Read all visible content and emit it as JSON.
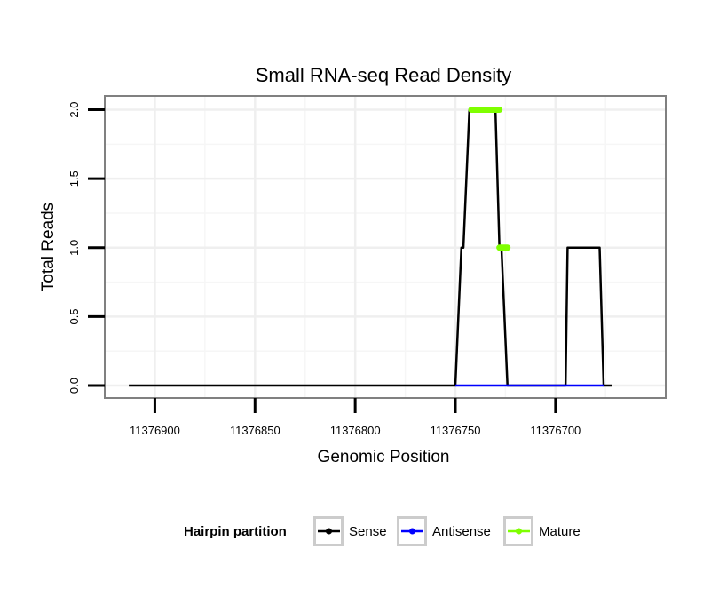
{
  "chart_data": {
    "type": "line",
    "title": "Small RNA-seq Read Density",
    "xlabel": "Genomic Position",
    "ylabel": "Total Reads",
    "xlim": [
      11376925,
      11376645
    ],
    "ylim": [
      -0.09,
      2.1
    ],
    "x_reversed": true,
    "grid": true,
    "x_ticks": [
      11376900,
      11376850,
      11376800,
      11376750,
      11376700
    ],
    "x_tick_labels": [
      "11376900",
      "11376850",
      "11376800",
      "11376750",
      "11376700"
    ],
    "y_ticks": [
      0,
      0.5,
      1,
      1.5,
      2
    ],
    "y_tick_labels": [
      "0.0",
      "0.5",
      "1.0",
      "1.5",
      "2.0"
    ],
    "series": [
      {
        "name": "Sense",
        "color": "#000000",
        "x": [
          11376913,
          11376750,
          11376747,
          11376747,
          11376746,
          11376743,
          11376730,
          11376728,
          11376727,
          11376724,
          11376695,
          11376694,
          11376678,
          11376676,
          11376672
        ],
        "y": [
          0,
          0,
          1,
          1,
          1,
          2,
          2,
          1,
          1,
          0,
          0,
          1,
          1,
          0,
          0
        ]
      },
      {
        "name": "Antisense",
        "color": "#0000ff",
        "x": [
          11376750,
          11376724,
          11376694,
          11376676
        ],
        "y": [
          0,
          0,
          0,
          0
        ]
      },
      {
        "name": "Mature",
        "color": "#7fff00",
        "segments": [
          {
            "x": [
              11376742,
              11376728
            ],
            "y": [
              2,
              2
            ]
          },
          {
            "x": [
              11376728,
              11376724
            ],
            "y": [
              1,
              1
            ]
          }
        ]
      }
    ],
    "legend": {
      "title": "Hairpin partition",
      "position": "bottom",
      "entries": [
        {
          "label": "Sense",
          "color": "#000000"
        },
        {
          "label": "Antisense",
          "color": "#0000ff"
        },
        {
          "label": "Mature",
          "color": "#7fff00"
        }
      ]
    }
  }
}
